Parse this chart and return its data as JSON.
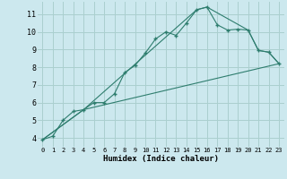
{
  "title": "",
  "xlabel": "Humidex (Indice chaleur)",
  "bg_color": "#cce8ee",
  "grid_color": "#aacfcf",
  "line_color": "#2e7d6e",
  "xlim": [
    -0.5,
    23.5
  ],
  "ylim": [
    3.5,
    11.7
  ],
  "xticks": [
    0,
    1,
    2,
    3,
    4,
    5,
    6,
    7,
    8,
    9,
    10,
    11,
    12,
    13,
    14,
    15,
    16,
    17,
    18,
    19,
    20,
    21,
    22,
    23
  ],
  "yticks": [
    4,
    5,
    6,
    7,
    8,
    9,
    10,
    11
  ],
  "line1_x": [
    0,
    1,
    2,
    3,
    4,
    5,
    6,
    7,
    8,
    9,
    10,
    11,
    12,
    13,
    14,
    15,
    16,
    17,
    18,
    19,
    20,
    21,
    22,
    23
  ],
  "line1_y": [
    3.9,
    4.1,
    5.0,
    5.5,
    5.6,
    6.0,
    6.0,
    6.5,
    7.7,
    8.1,
    8.8,
    9.6,
    10.0,
    9.8,
    10.5,
    11.25,
    11.4,
    10.4,
    10.1,
    10.15,
    10.1,
    8.95,
    8.85,
    8.2
  ],
  "line2_x": [
    0,
    4,
    15,
    16,
    20,
    21,
    22,
    23
  ],
  "line2_y": [
    3.9,
    5.6,
    11.25,
    11.4,
    10.1,
    8.95,
    8.85,
    8.2
  ],
  "line3_x": [
    0,
    4,
    23
  ],
  "line3_y": [
    3.9,
    5.6,
    8.2
  ]
}
